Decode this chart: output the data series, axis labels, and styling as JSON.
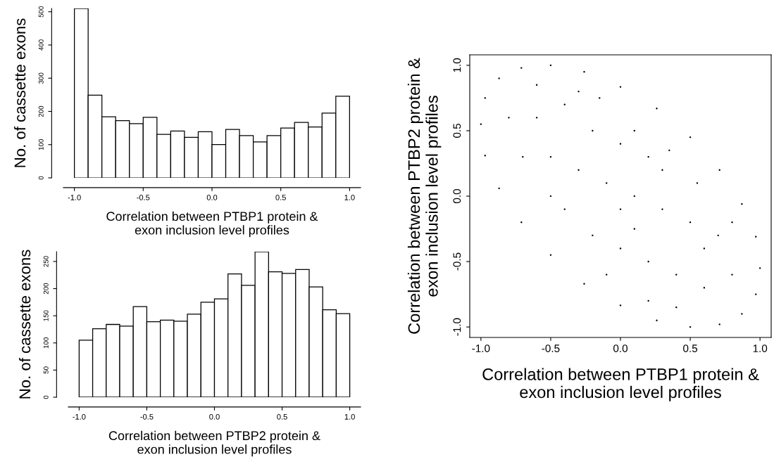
{
  "chart_data": [
    {
      "type": "histogram",
      "xlabel": "Correlation between PTBP1 protein &\nexon inclusion level profiles",
      "ylabel": "No. of cassette exons",
      "color": "#ffffff",
      "bins": [
        -1.0,
        -0.9,
        -0.8,
        -0.7,
        -0.6,
        -0.5,
        -0.4,
        -0.3,
        -0.2,
        -0.1,
        0.0,
        0.1,
        0.2,
        0.3,
        0.4,
        0.5,
        0.6,
        0.7,
        0.8,
        0.9,
        1.0
      ],
      "values": [
        510,
        249,
        184,
        172,
        163,
        182,
        131,
        141,
        122,
        139,
        100,
        146,
        127,
        108,
        127,
        150,
        167,
        153,
        195,
        246
      ],
      "xlim": [
        -1.08,
        1.08
      ],
      "ylim": [
        0,
        510
      ],
      "xticks": [
        {
          "value": -1.0,
          "label": "-1.0"
        },
        {
          "value": -0.5,
          "label": "-0.5"
        },
        {
          "value": 0.0,
          "label": "0.0"
        },
        {
          "value": 0.5,
          "label": "0.5"
        },
        {
          "value": 1.0,
          "label": "1.0"
        }
      ],
      "yticks": [
        0,
        100,
        200,
        300,
        400,
        500
      ]
    },
    {
      "type": "histogram",
      "xlabel": "Correlation between PTBP2 protein &\nexon inclusion level profiles",
      "ylabel": "No. of cassette exons",
      "color": "#ffffff",
      "bins": [
        -1.0,
        -0.9,
        -0.8,
        -0.7,
        -0.6,
        -0.5,
        -0.4,
        -0.3,
        -0.2,
        -0.1,
        0.0,
        0.1,
        0.2,
        0.3,
        0.4,
        0.5,
        0.6,
        0.7,
        0.8,
        0.9,
        1.0
      ],
      "values": [
        105,
        126,
        134,
        131,
        167,
        139,
        142,
        140,
        153,
        175,
        181,
        227,
        206,
        268,
        231,
        228,
        235,
        203,
        161,
        154
      ],
      "xlim": [
        -1.08,
        1.08
      ],
      "ylim": [
        0,
        268
      ],
      "xticks": [
        {
          "value": -1.0,
          "label": "-1.0"
        },
        {
          "value": -0.5,
          "label": "-0.5"
        },
        {
          "value": 0.0,
          "label": "0.0"
        },
        {
          "value": 0.5,
          "label": "0.5"
        },
        {
          "value": 1.0,
          "label": "1.0"
        }
      ],
      "yticks": [
        0,
        50,
        100,
        150,
        200,
        250
      ]
    },
    {
      "type": "scatter",
      "xlabel": "Correlation between PTBP1 protein &\nexon inclusion level profiles",
      "ylabel": "Correlation between PTBP2 protein &\nexon inclusion level profiles",
      "color": "#000000",
      "marker": "circle",
      "x": [
        1.0,
        0.97,
        0.87,
        0.71,
        0.5,
        0.26,
        0.0,
        -0.26,
        -0.5,
        -0.71,
        -0.87,
        -0.97,
        -1.0,
        -0.97,
        -0.87,
        -0.71,
        -0.5,
        -0.26,
        0.0,
        0.26,
        0.5,
        0.71,
        0.87,
        0.97,
        -0.6,
        -0.4,
        -0.2,
        0.0,
        0.2,
        -0.5,
        -0.3,
        -0.1,
        0.1,
        0.3,
        0.5,
        0.7,
        -0.7,
        -0.4,
        -0.2,
        0.0,
        0.2,
        0.4,
        0.6,
        0.8,
        0.3,
        0.1,
        -0.3,
        -0.8,
        0.4,
        0.6,
        0.0,
        -0.5,
        0.2,
        0.8,
        -0.1,
        0.1,
        -0.6,
        -0.15,
        0.35,
        0.55
      ],
      "values": [
        -0.55,
        -0.31,
        -0.06,
        0.2,
        0.45,
        0.67,
        0.835,
        0.95,
        1.0,
        0.98,
        0.9,
        0.75,
        0.55,
        0.31,
        0.06,
        -0.2,
        -0.45,
        -0.67,
        -0.835,
        -0.95,
        -1.0,
        -0.98,
        -0.9,
        -0.75,
        0.6,
        0.7,
        0.5,
        0.4,
        0.3,
        0.3,
        0.2,
        0.1,
        0.0,
        -0.1,
        -0.2,
        -0.3,
        0.3,
        -0.1,
        -0.3,
        -0.4,
        -0.5,
        -0.6,
        -0.7,
        -0.6,
        0.2,
        0.5,
        0.8,
        0.6,
        -0.85,
        -0.4,
        -0.1,
        0.0,
        -0.8,
        -0.2,
        -0.6,
        -0.25,
        0.85,
        0.75,
        0.35,
        0.1
      ],
      "xlim": [
        -1.08,
        1.08
      ],
      "ylim": [
        -1.08,
        1.08
      ],
      "xticks": [
        {
          "value": -1.0,
          "label": "-1.0"
        },
        {
          "value": -0.5,
          "label": "-0.5"
        },
        {
          "value": 0.0,
          "label": "0.0"
        },
        {
          "value": 0.5,
          "label": "0.5"
        },
        {
          "value": 1.0,
          "label": "1.0"
        }
      ],
      "yticks": [
        {
          "value": -1.0,
          "label": "-1.0"
        },
        {
          "value": -0.5,
          "label": "-0.5"
        },
        {
          "value": 0.0,
          "label": "0.0"
        },
        {
          "value": 0.5,
          "label": "0.5"
        },
        {
          "value": 1.0,
          "label": "1.0"
        }
      ]
    }
  ]
}
